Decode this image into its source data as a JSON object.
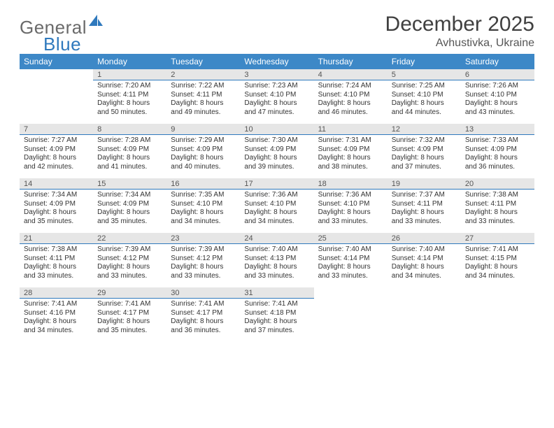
{
  "brand": {
    "name_a": "General",
    "name_b": "Blue"
  },
  "title": {
    "month": "December 2025",
    "location": "Avhustivka, Ukraine"
  },
  "colors": {
    "header_bg": "#3d88c7",
    "daybar_bg": "#e6e6e6",
    "rule": "#2f79bd",
    "text": "#333333",
    "title_text": "#404040",
    "logo_gray": "#6a6a6a"
  },
  "weekdays": [
    "Sunday",
    "Monday",
    "Tuesday",
    "Wednesday",
    "Thursday",
    "Friday",
    "Saturday"
  ],
  "weeks": [
    [
      null,
      {
        "n": "1",
        "sunrise": "7:20 AM",
        "sunset": "4:11 PM",
        "day_a": "Daylight: 8 hours",
        "day_b": "and 50 minutes."
      },
      {
        "n": "2",
        "sunrise": "7:22 AM",
        "sunset": "4:11 PM",
        "day_a": "Daylight: 8 hours",
        "day_b": "and 49 minutes."
      },
      {
        "n": "3",
        "sunrise": "7:23 AM",
        "sunset": "4:10 PM",
        "day_a": "Daylight: 8 hours",
        "day_b": "and 47 minutes."
      },
      {
        "n": "4",
        "sunrise": "7:24 AM",
        "sunset": "4:10 PM",
        "day_a": "Daylight: 8 hours",
        "day_b": "and 46 minutes."
      },
      {
        "n": "5",
        "sunrise": "7:25 AM",
        "sunset": "4:10 PM",
        "day_a": "Daylight: 8 hours",
        "day_b": "and 44 minutes."
      },
      {
        "n": "6",
        "sunrise": "7:26 AM",
        "sunset": "4:10 PM",
        "day_a": "Daylight: 8 hours",
        "day_b": "and 43 minutes."
      }
    ],
    [
      {
        "n": "7",
        "sunrise": "7:27 AM",
        "sunset": "4:09 PM",
        "day_a": "Daylight: 8 hours",
        "day_b": "and 42 minutes."
      },
      {
        "n": "8",
        "sunrise": "7:28 AM",
        "sunset": "4:09 PM",
        "day_a": "Daylight: 8 hours",
        "day_b": "and 41 minutes."
      },
      {
        "n": "9",
        "sunrise": "7:29 AM",
        "sunset": "4:09 PM",
        "day_a": "Daylight: 8 hours",
        "day_b": "and 40 minutes."
      },
      {
        "n": "10",
        "sunrise": "7:30 AM",
        "sunset": "4:09 PM",
        "day_a": "Daylight: 8 hours",
        "day_b": "and 39 minutes."
      },
      {
        "n": "11",
        "sunrise": "7:31 AM",
        "sunset": "4:09 PM",
        "day_a": "Daylight: 8 hours",
        "day_b": "and 38 minutes."
      },
      {
        "n": "12",
        "sunrise": "7:32 AM",
        "sunset": "4:09 PM",
        "day_a": "Daylight: 8 hours",
        "day_b": "and 37 minutes."
      },
      {
        "n": "13",
        "sunrise": "7:33 AM",
        "sunset": "4:09 PM",
        "day_a": "Daylight: 8 hours",
        "day_b": "and 36 minutes."
      }
    ],
    [
      {
        "n": "14",
        "sunrise": "7:34 AM",
        "sunset": "4:09 PM",
        "day_a": "Daylight: 8 hours",
        "day_b": "and 35 minutes."
      },
      {
        "n": "15",
        "sunrise": "7:34 AM",
        "sunset": "4:09 PM",
        "day_a": "Daylight: 8 hours",
        "day_b": "and 35 minutes."
      },
      {
        "n": "16",
        "sunrise": "7:35 AM",
        "sunset": "4:10 PM",
        "day_a": "Daylight: 8 hours",
        "day_b": "and 34 minutes."
      },
      {
        "n": "17",
        "sunrise": "7:36 AM",
        "sunset": "4:10 PM",
        "day_a": "Daylight: 8 hours",
        "day_b": "and 34 minutes."
      },
      {
        "n": "18",
        "sunrise": "7:36 AM",
        "sunset": "4:10 PM",
        "day_a": "Daylight: 8 hours",
        "day_b": "and 33 minutes."
      },
      {
        "n": "19",
        "sunrise": "7:37 AM",
        "sunset": "4:11 PM",
        "day_a": "Daylight: 8 hours",
        "day_b": "and 33 minutes."
      },
      {
        "n": "20",
        "sunrise": "7:38 AM",
        "sunset": "4:11 PM",
        "day_a": "Daylight: 8 hours",
        "day_b": "and 33 minutes."
      }
    ],
    [
      {
        "n": "21",
        "sunrise": "7:38 AM",
        "sunset": "4:11 PM",
        "day_a": "Daylight: 8 hours",
        "day_b": "and 33 minutes."
      },
      {
        "n": "22",
        "sunrise": "7:39 AM",
        "sunset": "4:12 PM",
        "day_a": "Daylight: 8 hours",
        "day_b": "and 33 minutes."
      },
      {
        "n": "23",
        "sunrise": "7:39 AM",
        "sunset": "4:12 PM",
        "day_a": "Daylight: 8 hours",
        "day_b": "and 33 minutes."
      },
      {
        "n": "24",
        "sunrise": "7:40 AM",
        "sunset": "4:13 PM",
        "day_a": "Daylight: 8 hours",
        "day_b": "and 33 minutes."
      },
      {
        "n": "25",
        "sunrise": "7:40 AM",
        "sunset": "4:14 PM",
        "day_a": "Daylight: 8 hours",
        "day_b": "and 33 minutes."
      },
      {
        "n": "26",
        "sunrise": "7:40 AM",
        "sunset": "4:14 PM",
        "day_a": "Daylight: 8 hours",
        "day_b": "and 34 minutes."
      },
      {
        "n": "27",
        "sunrise": "7:41 AM",
        "sunset": "4:15 PM",
        "day_a": "Daylight: 8 hours",
        "day_b": "and 34 minutes."
      }
    ],
    [
      {
        "n": "28",
        "sunrise": "7:41 AM",
        "sunset": "4:16 PM",
        "day_a": "Daylight: 8 hours",
        "day_b": "and 34 minutes."
      },
      {
        "n": "29",
        "sunrise": "7:41 AM",
        "sunset": "4:17 PM",
        "day_a": "Daylight: 8 hours",
        "day_b": "and 35 minutes."
      },
      {
        "n": "30",
        "sunrise": "7:41 AM",
        "sunset": "4:17 PM",
        "day_a": "Daylight: 8 hours",
        "day_b": "and 36 minutes."
      },
      {
        "n": "31",
        "sunrise": "7:41 AM",
        "sunset": "4:18 PM",
        "day_a": "Daylight: 8 hours",
        "day_b": "and 37 minutes."
      },
      null,
      null,
      null
    ]
  ],
  "labels": {
    "sunrise": "Sunrise:",
    "sunset": "Sunset:"
  }
}
